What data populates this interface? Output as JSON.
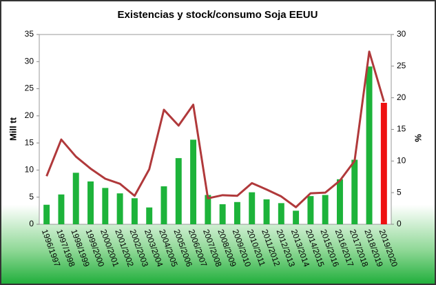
{
  "chart_data": {
    "type": "bar_line",
    "title": "Existencias y stock/consumo Soja EEUU",
    "y_label": "Mill tt",
    "y2_label": "%",
    "categories": [
      "1996/1997",
      "1997/1998",
      "1998/1999",
      "1999/2000",
      "2000/2001",
      "2001/2002",
      "2002/2003",
      "2003/2004",
      "2004/2005",
      "2005/2006",
      "2006/2007",
      "2007/2008",
      "2008/2009",
      "2009/2010",
      "2010/2011",
      "2011/2012",
      "2012/2013",
      "2013/2014",
      "2014/2015",
      "2015/2016",
      "2016/2017",
      "2017/2018",
      "2018/2019",
      "2019/2020"
    ],
    "series": [
      {
        "type": "bar",
        "colors": [
          "#1db33a",
          "#1db33a",
          "#1db33a",
          "#1db33a",
          "#1db33a",
          "#1db33a",
          "#1db33a",
          "#1db33a",
          "#1db33a",
          "#1db33a",
          "#1db33a",
          "#1db33a",
          "#1db33a",
          "#1db33a",
          "#1db33a",
          "#1db33a",
          "#1db33a",
          "#1db33a",
          "#1db33a",
          "#1db33a",
          "#1db33a",
          "#1db33a",
          "#1db33a",
          "#ee1111"
        ],
        "values": [
          3.6,
          5.5,
          9.5,
          7.9,
          6.7,
          5.7,
          4.8,
          3.1,
          7.0,
          12.2,
          15.6,
          5.4,
          3.7,
          4.1,
          5.9,
          4.6,
          3.9,
          2.5,
          5.2,
          5.4,
          8.3,
          11.9,
          29.1,
          22.4
        ]
      },
      {
        "type": "line",
        "axis": "y2",
        "color": "#b0393b",
        "values": [
          7.6,
          13.4,
          10.7,
          8.8,
          7.2,
          6.4,
          4.5,
          8.7,
          18.1,
          15.6,
          18.9,
          4.1,
          4.6,
          4.5,
          6.5,
          5.5,
          4.4,
          2.7,
          4.9,
          5.0,
          6.9,
          10.0,
          27.3,
          19.4
        ]
      }
    ],
    "ylim": [
      0,
      35
    ],
    "yticks": [
      0,
      5,
      10,
      15,
      20,
      25,
      30,
      35
    ],
    "y2lim": [
      0,
      30
    ],
    "y2ticks": [
      0,
      5,
      10,
      15,
      20,
      25,
      30
    ]
  }
}
